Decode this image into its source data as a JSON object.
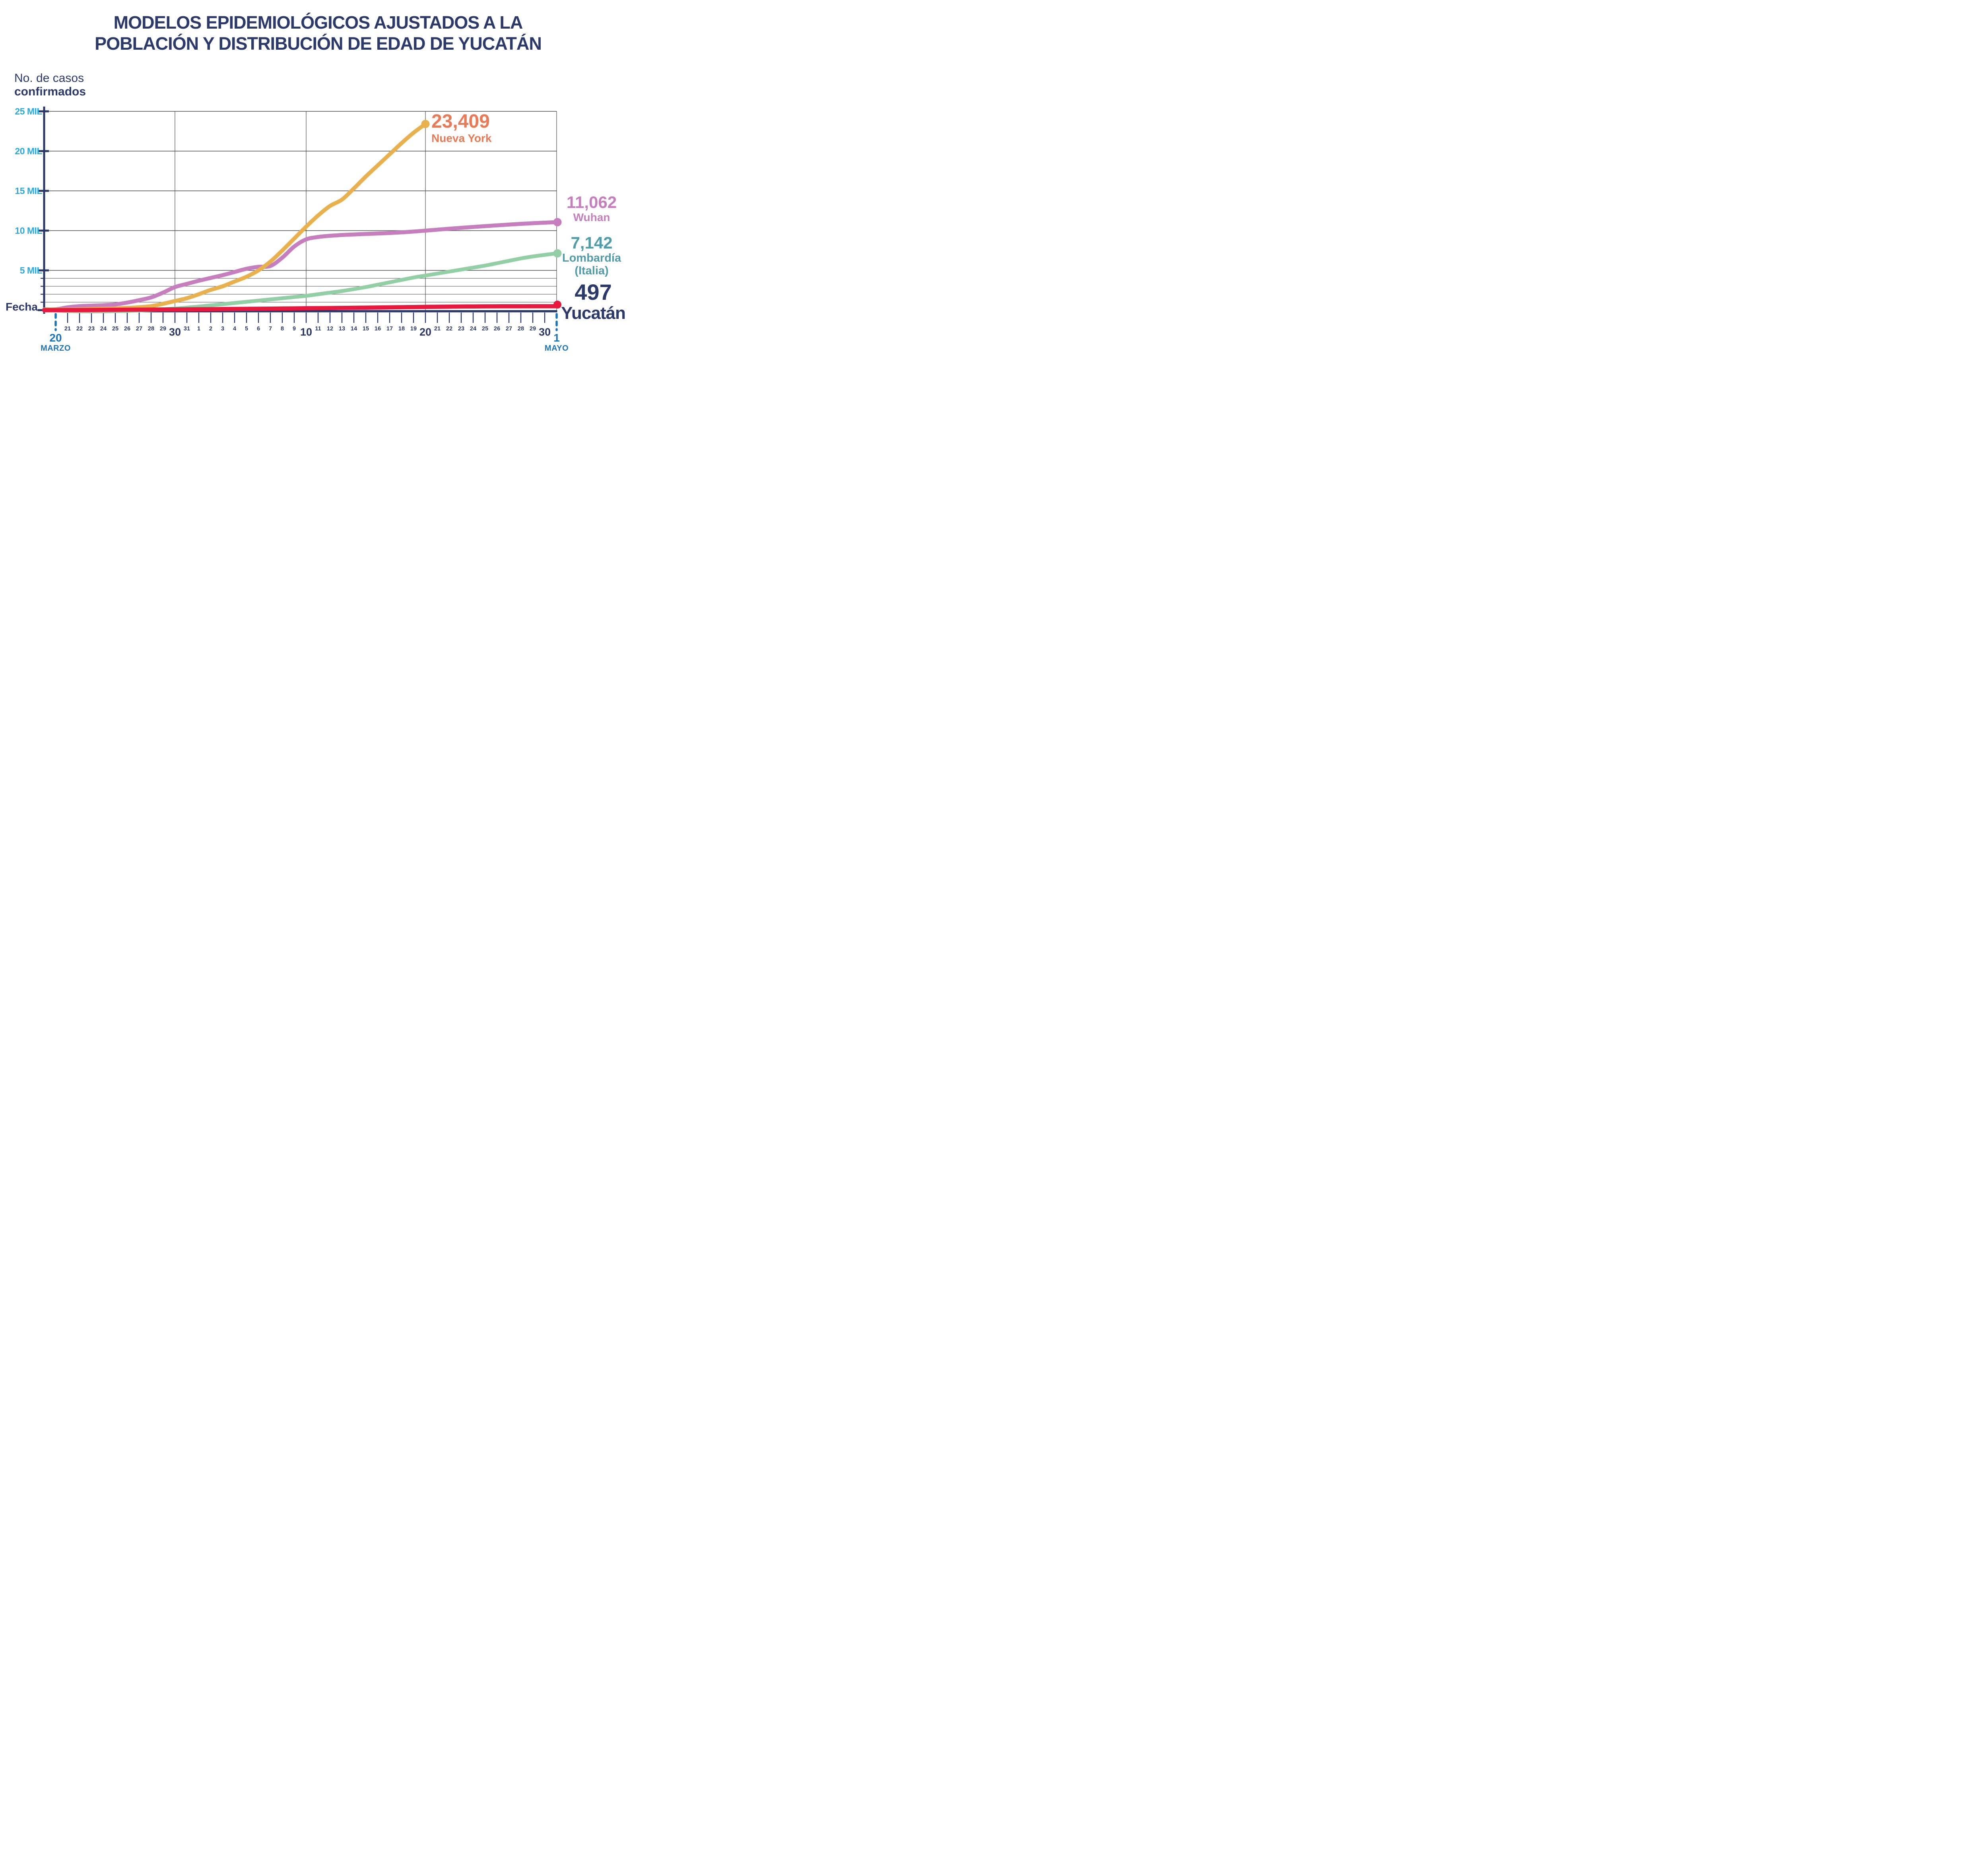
{
  "title": {
    "line1": "MODELOS EPIDEMIOLÓGICOS AJUSTADOS A LA",
    "line2": "POBLACIÓN Y DISTRIBUCIÓN DE EDAD DE YUCATÁN"
  },
  "y_axis": {
    "title_line1": "No. de casos",
    "title_line2": "confirmados",
    "tick_labels": [
      "25 MIL",
      "20 MIL",
      "15 MIL",
      "10 MIL",
      "5 MIL"
    ],
    "tick_values_mil": [
      25,
      20,
      15,
      10,
      5
    ]
  },
  "x_axis": {
    "title": "Fecha",
    "start_day": "20",
    "start_month": "MARZO",
    "end_day": "1",
    "end_month": "MAYO",
    "ticks": [
      {
        "d": 1,
        "label": "21",
        "big": false
      },
      {
        "d": 2,
        "label": "22",
        "big": false
      },
      {
        "d": 3,
        "label": "23",
        "big": false
      },
      {
        "d": 4,
        "label": "24",
        "big": false
      },
      {
        "d": 5,
        "label": "25",
        "big": false
      },
      {
        "d": 6,
        "label": "26",
        "big": false
      },
      {
        "d": 7,
        "label": "27",
        "big": false
      },
      {
        "d": 8,
        "label": "28",
        "big": false
      },
      {
        "d": 9,
        "label": "29",
        "big": false
      },
      {
        "d": 10,
        "label": "30",
        "big": true
      },
      {
        "d": 11,
        "label": "31",
        "big": false
      },
      {
        "d": 12,
        "label": "1",
        "big": false
      },
      {
        "d": 13,
        "label": "2",
        "big": false
      },
      {
        "d": 14,
        "label": "3",
        "big": false
      },
      {
        "d": 15,
        "label": "4",
        "big": false
      },
      {
        "d": 16,
        "label": "5",
        "big": false
      },
      {
        "d": 17,
        "label": "6",
        "big": false
      },
      {
        "d": 18,
        "label": "7",
        "big": false
      },
      {
        "d": 19,
        "label": "8",
        "big": false
      },
      {
        "d": 20,
        "label": "9",
        "big": false
      },
      {
        "d": 21,
        "label": "10",
        "big": true
      },
      {
        "d": 22,
        "label": "11",
        "big": false
      },
      {
        "d": 23,
        "label": "12",
        "big": false
      },
      {
        "d": 24,
        "label": "13",
        "big": false
      },
      {
        "d": 25,
        "label": "14",
        "big": false
      },
      {
        "d": 26,
        "label": "15",
        "big": false
      },
      {
        "d": 27,
        "label": "16",
        "big": false
      },
      {
        "d": 28,
        "label": "17",
        "big": false
      },
      {
        "d": 29,
        "label": "18",
        "big": false
      },
      {
        "d": 30,
        "label": "19",
        "big": false
      },
      {
        "d": 31,
        "label": "20",
        "big": true
      },
      {
        "d": 32,
        "label": "21",
        "big": false
      },
      {
        "d": 33,
        "label": "22",
        "big": false
      },
      {
        "d": 34,
        "label": "23",
        "big": false
      },
      {
        "d": 35,
        "label": "24",
        "big": false
      },
      {
        "d": 36,
        "label": "25",
        "big": false
      },
      {
        "d": 37,
        "label": "26",
        "big": false
      },
      {
        "d": 38,
        "label": "27",
        "big": false
      },
      {
        "d": 39,
        "label": "28",
        "big": false
      },
      {
        "d": 40,
        "label": "29",
        "big": false
      },
      {
        "d": 41,
        "label": "30",
        "big": true
      }
    ]
  },
  "labels": {
    "nueva_york": {
      "value": "23,409",
      "name": "Nueva York"
    },
    "wuhan": {
      "value": "11,062",
      "name": "Wuhan"
    },
    "lombardia": {
      "value": "7,142",
      "name": "Lombardía",
      "sub": "(Italia)"
    },
    "yucatan": {
      "value": "497",
      "name": "Yucatán"
    }
  },
  "colors": {
    "navy": "#2b3a6b",
    "axis_navy": "#293768",
    "cyan": "#29abe2",
    "date_blue": "#1b75bc",
    "gridline": "#4b4b4b",
    "nueva_york_line": "#e9b04e",
    "nueva_york_label": "#e87a55",
    "wuhan_line": "#c77ebe",
    "lombardia_line": "#92cfa4",
    "lombardia_label": "#4f9da9",
    "yucatan_line": "#e8183e"
  },
  "chart_data": {
    "type": "line",
    "title": "Modelos epidemiológicos ajustados a la población y distribución de edad de Yucatán",
    "ylabel": "No. de casos confirmados",
    "xlabel": "Fecha",
    "ylim": [
      0,
      25000
    ],
    "y_major_gridlines": [
      5000,
      10000,
      15000,
      20000,
      25000
    ],
    "y_minor_gridlines": [
      1000,
      2000,
      3000,
      4000
    ],
    "x_range_labels": [
      "20 MARZO",
      "1 MAYO"
    ],
    "x_days_total": 42,
    "x_vertical_gridline_days": [
      10,
      21,
      31,
      42
    ],
    "legend_position": "end-of-line labels",
    "grid": true,
    "series": [
      {
        "name": "Nueva York",
        "end_label": "23,409",
        "final_value": 23409,
        "line_color": "#e9b04e",
        "label_color": "#e87a55",
        "start_day": 0,
        "values": [
          50,
          80,
          110,
          140,
          180,
          220,
          280,
          360,
          500,
          800,
          1150,
          1500,
          2000,
          2550,
          3000,
          3600,
          4200,
          5000,
          6100,
          7500,
          9000,
          10500,
          11900,
          13100,
          13900,
          15300,
          16800,
          18200,
          19600,
          21000,
          22300,
          23409
        ]
      },
      {
        "name": "Wuhan",
        "end_label": "11,062",
        "final_value": 11062,
        "line_color": "#c77ebe",
        "label_color": "#c77ebe",
        "start_day": 0,
        "values": [
          100,
          350,
          500,
          560,
          620,
          720,
          950,
          1250,
          1600,
          2200,
          2900,
          3300,
          3700,
          4050,
          4400,
          4800,
          5200,
          5450,
          5550,
          6600,
          8000,
          8900,
          9200,
          9350,
          9450,
          9520,
          9580,
          9640,
          9700,
          9780,
          9880,
          10000,
          10120,
          10240,
          10350,
          10460,
          10560,
          10660,
          10760,
          10850,
          10930,
          11000,
          11062
        ]
      },
      {
        "name": "Lombardía (Italia)",
        "end_label": "7,142",
        "final_value": 7142,
        "line_color": "#92cfa4",
        "label_color": "#4f9da9",
        "start_day": 0,
        "values": [
          -50,
          -120,
          -150,
          -160,
          -150,
          -130,
          -100,
          -50,
          20,
          100,
          200,
          320,
          450,
          600,
          750,
          900,
          1050,
          1200,
          1350,
          1500,
          1650,
          1800,
          2000,
          2200,
          2400,
          2650,
          2900,
          3200,
          3500,
          3800,
          4100,
          4350,
          4600,
          4850,
          5100,
          5350,
          5600,
          5900,
          6200,
          6500,
          6750,
          6950,
          7142
        ]
      },
      {
        "name": "Yucatán",
        "end_label": "497",
        "final_value": 497,
        "line_color": "#e8183e",
        "label_color": "#2b3a6b",
        "start_day": 0,
        "values": [
          5,
          10,
          15,
          20,
          30,
          40,
          50,
          60,
          70,
          80,
          90,
          100,
          110,
          120,
          135,
          150,
          162,
          175,
          190,
          205,
          220,
          235,
          250,
          265,
          280,
          300,
          315,
          330,
          350,
          370,
          390,
          410,
          425,
          440,
          455,
          465,
          475,
          482,
          488,
          492,
          495,
          496,
          497
        ]
      }
    ]
  }
}
